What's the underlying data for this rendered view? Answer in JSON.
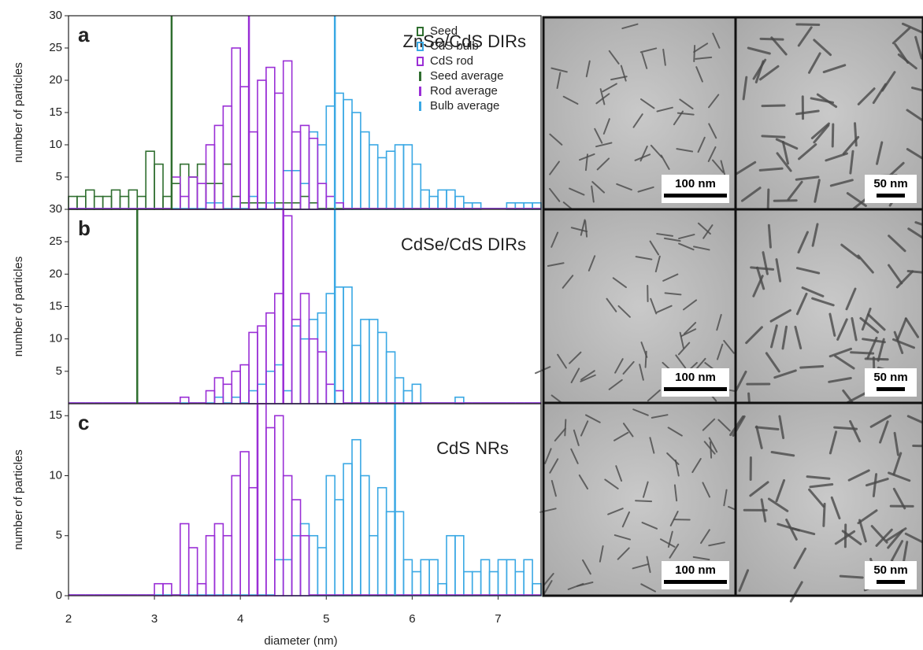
{
  "chart_data": [
    {
      "type": "histogram",
      "panel_label": "a",
      "title": "ZnSe/CdS DIRs",
      "y_label": "number of particles",
      "xlim": [
        2,
        7.5
      ],
      "ylim": [
        0,
        30
      ],
      "yticks": [
        5,
        10,
        15,
        20,
        25,
        30
      ],
      "legend": "upper right",
      "bins": [
        2,
        2.1,
        2.2,
        2.3,
        2.4,
        2.5,
        2.6,
        2.7,
        2.8,
        2.9,
        3,
        3.1,
        3.2,
        3.3,
        3.4,
        3.5,
        3.6,
        3.7,
        3.8,
        3.9,
        4,
        4.1,
        4.2,
        4.3,
        4.4,
        4.5,
        4.6,
        4.7,
        4.8,
        4.9,
        5,
        5.1,
        5.2,
        5.3,
        5.4,
        5.5,
        5.6,
        5.7,
        5.8,
        5.9,
        6,
        6.1,
        6.2,
        6.3,
        6.4,
        6.5,
        6.6,
        6.7,
        6.8,
        6.9,
        7,
        7.1,
        7.2,
        7.3,
        7.4,
        7.5
      ],
      "series": [
        {
          "name": "Seed",
          "color": "#2f6e2f",
          "values": [
            2,
            2,
            3,
            2,
            2,
            3,
            2,
            3,
            2,
            9,
            7,
            2,
            4,
            7,
            5,
            7,
            4,
            4,
            7,
            2,
            1,
            1,
            1,
            1,
            1,
            1,
            1,
            2,
            1,
            0,
            0,
            0,
            0,
            0,
            0,
            0,
            0,
            0,
            0,
            0,
            0,
            0,
            0,
            0,
            0,
            0,
            0,
            0,
            0,
            0,
            0,
            0,
            0,
            0,
            0
          ]
        },
        {
          "name": "CdS bulb",
          "color": "#3aa8e4",
          "values": [
            0,
            0,
            0,
            0,
            0,
            0,
            0,
            0,
            0,
            0,
            0,
            0,
            0,
            0,
            0,
            0,
            1,
            1,
            0,
            0,
            0,
            2,
            0,
            1,
            0,
            6,
            6,
            4,
            12,
            10,
            16,
            18,
            17,
            15,
            12,
            10,
            8,
            9,
            10,
            10,
            7,
            3,
            2,
            3,
            3,
            2,
            1,
            1,
            0,
            0,
            0,
            1,
            1,
            1,
            1
          ]
        },
        {
          "name": "CdS rod",
          "color": "#9a2fd6",
          "values": [
            0,
            0,
            0,
            0,
            0,
            0,
            0,
            0,
            0,
            0,
            0,
            0,
            5,
            2,
            5,
            4,
            10,
            13,
            16,
            25,
            19,
            12,
            20,
            22,
            18,
            23,
            12,
            13,
            11,
            4,
            2,
            1,
            0,
            0,
            0,
            0,
            0,
            0,
            0,
            0,
            0,
            0,
            0,
            0,
            0,
            0,
            0,
            0,
            0,
            0,
            0,
            0,
            0,
            0,
            0
          ]
        }
      ],
      "averages": [
        {
          "name": "Seed average",
          "color": "#2f6e2f",
          "value": 3.2
        },
        {
          "name": "Rod average",
          "color": "#9a2fd6",
          "value": 4.1
        },
        {
          "name": "Bulb average",
          "color": "#3aa8e4",
          "value": 5.1
        }
      ]
    },
    {
      "type": "histogram",
      "panel_label": "b",
      "title": "CdSe/CdS DIRs",
      "y_label": "number of particles",
      "xlim": [
        2,
        7.5
      ],
      "ylim": [
        0,
        30
      ],
      "yticks": [
        5,
        10,
        15,
        20,
        25,
        30
      ],
      "bins": [
        2,
        2.1,
        2.2,
        2.3,
        2.4,
        2.5,
        2.6,
        2.7,
        2.8,
        2.9,
        3,
        3.1,
        3.2,
        3.3,
        3.4,
        3.5,
        3.6,
        3.7,
        3.8,
        3.9,
        4,
        4.1,
        4.2,
        4.3,
        4.4,
        4.5,
        4.6,
        4.7,
        4.8,
        4.9,
        5,
        5.1,
        5.2,
        5.3,
        5.4,
        5.5,
        5.6,
        5.7,
        5.8,
        5.9,
        6,
        6.1,
        6.2,
        6.3,
        6.4,
        6.5,
        6.6,
        6.7,
        6.8,
        6.9,
        7,
        7.1,
        7.2,
        7.3,
        7.4,
        7.5
      ],
      "series": [
        {
          "color": "#3aa8e4",
          "values": [
            0,
            0,
            0,
            0,
            0,
            0,
            0,
            0,
            0,
            0,
            0,
            0,
            0,
            0,
            0,
            0,
            0,
            1,
            0,
            1,
            0,
            2,
            3,
            5,
            6,
            2,
            12,
            10,
            13,
            14,
            17,
            18,
            18,
            9,
            13,
            13,
            11,
            8,
            4,
            2,
            3,
            0,
            0,
            0,
            0,
            1,
            0,
            0,
            0,
            0,
            0,
            0,
            0,
            0,
            0
          ]
        },
        {
          "color": "#9a2fd6",
          "values": [
            0,
            0,
            0,
            0,
            0,
            0,
            0,
            0,
            0,
            0,
            0,
            0,
            0,
            1,
            0,
            0,
            2,
            4,
            3,
            5,
            6,
            11,
            12,
            14,
            17,
            29,
            13,
            17,
            10,
            8,
            3,
            2,
            0,
            0,
            0,
            0,
            0,
            0,
            0,
            0,
            0,
            0,
            0,
            0,
            0,
            0,
            0,
            0,
            0,
            0,
            0,
            0,
            0,
            0,
            0
          ]
        }
      ],
      "averages": [
        {
          "color": "#2f6e2f",
          "value": 2.8
        },
        {
          "color": "#9a2fd6",
          "value": 4.5
        },
        {
          "color": "#3aa8e4",
          "value": 5.1
        }
      ]
    },
    {
      "type": "histogram",
      "panel_label": "c",
      "title": "CdS NRs",
      "y_label": "number of particles",
      "x_label": "diameter (nm)",
      "xlim": [
        2,
        7.5
      ],
      "xticks": [
        2,
        3,
        4,
        5,
        6,
        7
      ],
      "ylim": [
        0,
        16
      ],
      "yticks": [
        0,
        5,
        10,
        15
      ],
      "bins": [
        2,
        2.1,
        2.2,
        2.3,
        2.4,
        2.5,
        2.6,
        2.7,
        2.8,
        2.9,
        3,
        3.1,
        3.2,
        3.3,
        3.4,
        3.5,
        3.6,
        3.7,
        3.8,
        3.9,
        4,
        4.1,
        4.2,
        4.3,
        4.4,
        4.5,
        4.6,
        4.7,
        4.8,
        4.9,
        5,
        5.1,
        5.2,
        5.3,
        5.4,
        5.5,
        5.6,
        5.7,
        5.8,
        5.9,
        6,
        6.1,
        6.2,
        6.3,
        6.4,
        6.5,
        6.6,
        6.7,
        6.8,
        6.9,
        7,
        7.1,
        7.2,
        7.3,
        7.4,
        7.5
      ],
      "series": [
        {
          "color": "#3aa8e4",
          "values": [
            0,
            0,
            0,
            0,
            0,
            0,
            0,
            0,
            0,
            0,
            0,
            0,
            0,
            0,
            0,
            0,
            0,
            0,
            0,
            0,
            0,
            0,
            0,
            0,
            3,
            3,
            5,
            6,
            5,
            4,
            10,
            8,
            11,
            13,
            10,
            5,
            9,
            7,
            7,
            3,
            2,
            3,
            3,
            1,
            5,
            5,
            2,
            2,
            3,
            2,
            3,
            3,
            2,
            3,
            1
          ]
        },
        {
          "color": "#9a2fd6",
          "values": [
            0,
            0,
            0,
            0,
            0,
            0,
            0,
            0,
            0,
            0,
            1,
            1,
            0,
            6,
            4,
            1,
            5,
            6,
            5,
            10,
            12,
            9,
            16,
            14,
            15,
            10,
            8,
            5,
            0,
            0,
            0,
            0,
            0,
            0,
            0,
            0,
            0,
            0,
            0,
            0,
            0,
            0,
            0,
            0,
            0,
            0,
            0,
            0,
            0,
            0,
            0,
            0,
            0,
            0,
            0
          ]
        }
      ],
      "averages": [
        {
          "color": "#9a2fd6",
          "value": 4.2
        },
        {
          "color": "#3aa8e4",
          "value": 5.8
        }
      ]
    }
  ],
  "micrographs": [
    {
      "scale_bar": "100 nm"
    },
    {
      "scale_bar": "50 nm"
    },
    {
      "scale_bar": "100 nm"
    },
    {
      "scale_bar": "50 nm"
    },
    {
      "scale_bar": "100 nm"
    },
    {
      "scale_bar": "50 nm"
    }
  ]
}
